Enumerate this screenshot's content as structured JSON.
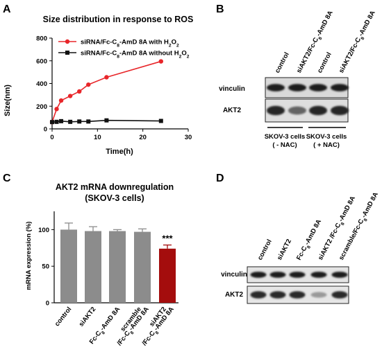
{
  "panel_letters": {
    "a": "A",
    "b": "B",
    "c": "C",
    "d": "D"
  },
  "colors": {
    "red": "#e8262a",
    "black": "#111111",
    "gray": "#8c8c8c",
    "dark_red": "#a40d0d"
  },
  "chart_data": [
    {
      "panel": "A",
      "type": "line",
      "title": "Size distribution in response to ROS",
      "xlabel": "Time(h)",
      "ylabel": "Size(nm)",
      "xlim": [
        0,
        30
      ],
      "ylim": [
        0,
        800
      ],
      "xticks": [
        "0",
        "10",
        "20",
        "30"
      ],
      "yticks": [
        "0",
        "200",
        "400",
        "600",
        "800"
      ],
      "legend_position": "top-left",
      "series": [
        {
          "name_parts": [
            "siRNA/Fc-C",
            "8",
            "-AmD 8A with H",
            "2",
            "O",
            "2"
          ],
          "color": "#e8262a",
          "marker": "circle",
          "x": [
            0,
            1,
            2,
            4,
            6,
            8,
            12,
            24
          ],
          "y": [
            60,
            175,
            250,
            290,
            330,
            390,
            455,
            595
          ],
          "err": [
            0,
            0,
            0,
            0,
            0,
            0,
            0,
            0
          ]
        },
        {
          "name_parts": [
            "siRNA/Fc-C",
            "8",
            "-AmD 8A without H",
            "2",
            "O",
            "2"
          ],
          "color": "#111111",
          "marker": "square",
          "x": [
            0,
            1,
            2,
            4,
            6,
            8,
            12,
            24
          ],
          "y": [
            60,
            62,
            68,
            62,
            65,
            65,
            75,
            70
          ],
          "err": [
            0,
            0,
            0,
            0,
            0,
            0,
            0,
            0
          ]
        }
      ]
    },
    {
      "panel": "C",
      "type": "bar",
      "title": "AKT2 mRNA downregulation",
      "subtitle": "(SKOV-3 cells)",
      "ylabel": "mRNA expression (%)",
      "ylim": [
        0,
        125
      ],
      "yticks": [
        "0",
        "50",
        "100"
      ],
      "categories": [
        {
          "lines": [
            [
              "control"
            ]
          ]
        },
        {
          "lines": [
            [
              "siAKT2"
            ]
          ]
        },
        {
          "lines": [
            [
              "Fc-C",
              "8",
              "-AmD 8A"
            ]
          ]
        },
        {
          "lines": [
            [
              "scramble"
            ],
            [
              "/Fc-C",
              "8",
              "-AmD 8A"
            ]
          ]
        },
        {
          "lines": [
            [
              "siAKT2"
            ],
            [
              "/Fc-C",
              "8",
              "-AmD 8A"
            ]
          ]
        }
      ],
      "values": [
        100,
        98,
        98,
        97,
        74
      ],
      "errors": [
        9,
        6,
        2,
        4,
        5
      ],
      "bar_colors": [
        "#8c8c8c",
        "#8c8c8c",
        "#8c8c8c",
        "#8c8c8c",
        "#a40d0d"
      ],
      "annotations": [
        {
          "category_index": 4,
          "text": "***"
        }
      ]
    }
  ],
  "blot_b": {
    "lane_labels": [
      {
        "parts": [
          "control"
        ]
      },
      {
        "parts": [
          "siAKT2/Fc-C",
          "8",
          "-AmD 8A"
        ]
      },
      {
        "parts": [
          "control"
        ]
      },
      {
        "parts": [
          "siAKT2/Fc-C",
          "8",
          "-AmD 8A"
        ]
      }
    ],
    "row_labels": [
      "vinculin",
      "AKT2"
    ],
    "group_labels": [
      {
        "line1": "SKOV-3 cells",
        "line2": "( - NAC)"
      },
      {
        "line1": "SKOV-3 cells",
        "line2": "( + NAC)"
      }
    ],
    "band_intensity": {
      "vinculin": [
        0.95,
        0.95,
        0.95,
        0.95
      ],
      "AKT2": [
        0.9,
        0.6,
        0.9,
        0.9
      ]
    }
  },
  "blot_d": {
    "lane_labels": [
      {
        "parts": [
          "control"
        ]
      },
      {
        "parts": [
          "siAKT2"
        ]
      },
      {
        "parts": [
          "Fc-C",
          "8",
          "-AmD 8A"
        ]
      },
      {
        "parts": [
          "siAKT2 /Fc-C",
          "8",
          "-AmD 8A"
        ]
      },
      {
        "parts": [
          "scramble/Fc-C",
          "8",
          "-AmD 8A"
        ]
      }
    ],
    "row_labels": [
      "vinculin",
      "AKT2"
    ],
    "band_intensity": {
      "vinculin": [
        0.95,
        0.95,
        0.95,
        0.95,
        0.95
      ],
      "AKT2": [
        0.9,
        0.9,
        0.9,
        0.35,
        0.9
      ]
    }
  }
}
